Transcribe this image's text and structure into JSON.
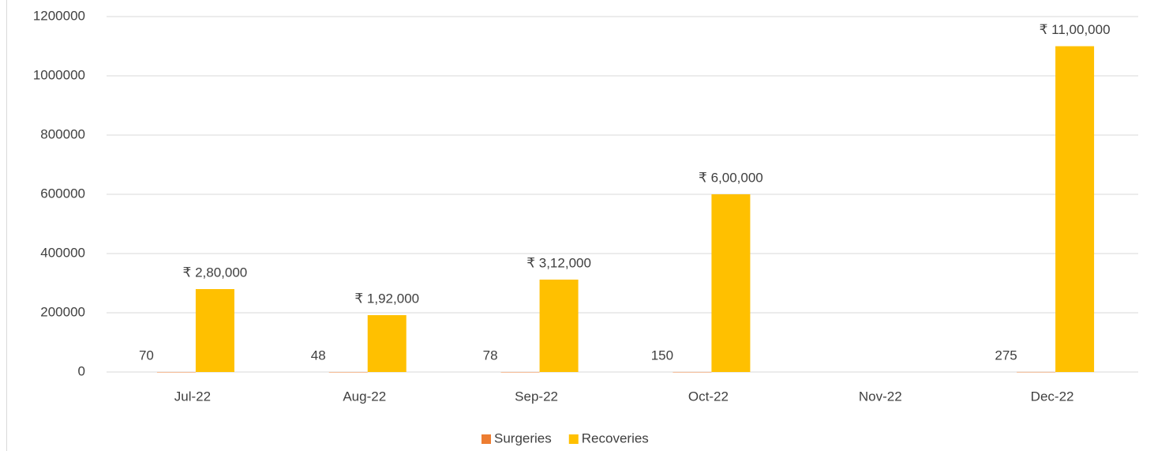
{
  "chart_data": {
    "type": "bar",
    "categories": [
      "Jul-22",
      "Aug-22",
      "Sep-22",
      "Oct-22",
      "Nov-22",
      "Dec-22"
    ],
    "series": [
      {
        "name": "Surgeries",
        "color": "#ed7d31",
        "values": [
          70,
          48,
          78,
          150,
          null,
          275
        ]
      },
      {
        "name": "Recoveries",
        "color": "#ffc000",
        "values": [
          280000,
          192000,
          312000,
          600000,
          null,
          1100000
        ],
        "value_labels": [
          "₹ 2,80,000",
          "₹ 1,92,000",
          "₹ 3,12,000",
          "₹ 6,00,000",
          null,
          "₹ 11,00,000"
        ]
      }
    ],
    "ylim": [
      0,
      1200000
    ],
    "yticks": [
      0,
      200000,
      400000,
      600000,
      800000,
      1000000,
      1200000
    ],
    "grid": true,
    "legend": "bottom"
  }
}
